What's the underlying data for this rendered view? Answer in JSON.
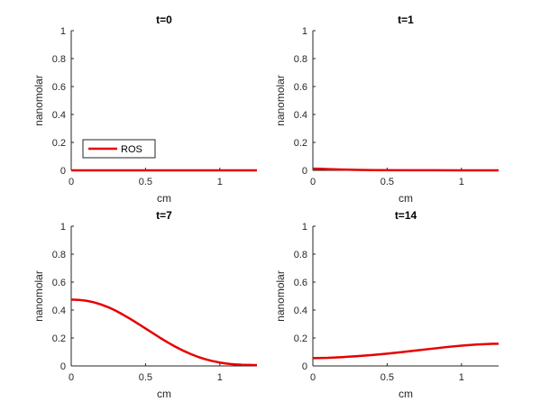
{
  "chart_data": [
    {
      "type": "line",
      "title": "t=0",
      "xlabel": "cm",
      "ylabel": "nanomolar",
      "xlim": [
        0,
        1.25
      ],
      "ylim": [
        0,
        1
      ],
      "xticks": [
        0,
        0.5,
        1
      ],
      "xtick_labels": [
        "0",
        "0.5",
        "1"
      ],
      "yticks": [
        0,
        0.2,
        0.4,
        0.6,
        0.8,
        1
      ],
      "ytick_labels": [
        "0",
        "0.2",
        "0.4",
        "0.6",
        "0.8",
        "1"
      ],
      "grid": false,
      "legend": {
        "entries": [
          "ROS"
        ],
        "placement": "bottom-left"
      },
      "series": [
        {
          "name": "ROS",
          "color": "#e60000",
          "x": [
            0,
            0.25,
            0.5,
            0.75,
            1.0,
            1.25
          ],
          "y": [
            0,
            0,
            0,
            0,
            0,
            0
          ]
        }
      ]
    },
    {
      "type": "line",
      "title": "t=1",
      "xlabel": "cm",
      "ylabel": "nanomolar",
      "xlim": [
        0,
        1.25
      ],
      "ylim": [
        0,
        1
      ],
      "xticks": [
        0,
        0.5,
        1
      ],
      "xtick_labels": [
        "0",
        "0.5",
        "1"
      ],
      "yticks": [
        0,
        0.2,
        0.4,
        0.6,
        0.8,
        1
      ],
      "ytick_labels": [
        "0",
        "0.2",
        "0.4",
        "0.6",
        "0.8",
        "1"
      ],
      "grid": false,
      "series": [
        {
          "color": "#e60000",
          "x": [
            0,
            0.05,
            0.1,
            0.2,
            0.3,
            0.4,
            0.6,
            0.8,
            1.0,
            1.25
          ],
          "y": [
            0.012,
            0.011,
            0.009,
            0.006,
            0.003,
            0.002,
            0.001,
            0.0005,
            0.0002,
            0.0001
          ]
        }
      ]
    },
    {
      "type": "line",
      "title": "t=7",
      "xlabel": "cm",
      "ylabel": "nanomolar",
      "xlim": [
        0,
        1.25
      ],
      "ylim": [
        0,
        1
      ],
      "xticks": [
        0,
        0.5,
        1
      ],
      "xtick_labels": [
        "0",
        "0.5",
        "1"
      ],
      "yticks": [
        0,
        0.2,
        0.4,
        0.6,
        0.8,
        1
      ],
      "ytick_labels": [
        "0",
        "0.2",
        "0.4",
        "0.6",
        "0.8",
        "1"
      ],
      "grid": false,
      "series": [
        {
          "color": "#e60000",
          "x": [
            0,
            0.05,
            0.1,
            0.15,
            0.2,
            0.25,
            0.3,
            0.35,
            0.4,
            0.45,
            0.5,
            0.55,
            0.6,
            0.65,
            0.7,
            0.75,
            0.8,
            0.85,
            0.9,
            0.95,
            1.0,
            1.05,
            1.1,
            1.15,
            1.2,
            1.25
          ],
          "y": [
            0.475,
            0.473,
            0.467,
            0.456,
            0.44,
            0.42,
            0.395,
            0.366,
            0.335,
            0.302,
            0.268,
            0.234,
            0.2,
            0.168,
            0.138,
            0.111,
            0.087,
            0.066,
            0.049,
            0.035,
            0.024,
            0.016,
            0.011,
            0.008,
            0.007,
            0.006
          ]
        }
      ]
    },
    {
      "type": "line",
      "title": "t=14",
      "xlabel": "cm",
      "ylabel": "nanomolar",
      "xlim": [
        0,
        1.25
      ],
      "ylim": [
        0,
        1
      ],
      "xticks": [
        0,
        0.5,
        1
      ],
      "xtick_labels": [
        "0",
        "0.5",
        "1"
      ],
      "yticks": [
        0,
        0.2,
        0.4,
        0.6,
        0.8,
        1
      ],
      "ytick_labels": [
        "0",
        "0.2",
        "0.4",
        "0.6",
        "0.8",
        "1"
      ],
      "grid": false,
      "series": [
        {
          "color": "#e60000",
          "x": [
            0,
            0.1,
            0.2,
            0.3,
            0.4,
            0.5,
            0.6,
            0.7,
            0.8,
            0.9,
            1.0,
            1.1,
            1.2,
            1.25
          ],
          "y": [
            0.056,
            0.058,
            0.063,
            0.07,
            0.078,
            0.088,
            0.099,
            0.111,
            0.123,
            0.135,
            0.145,
            0.153,
            0.158,
            0.159
          ]
        }
      ]
    }
  ]
}
